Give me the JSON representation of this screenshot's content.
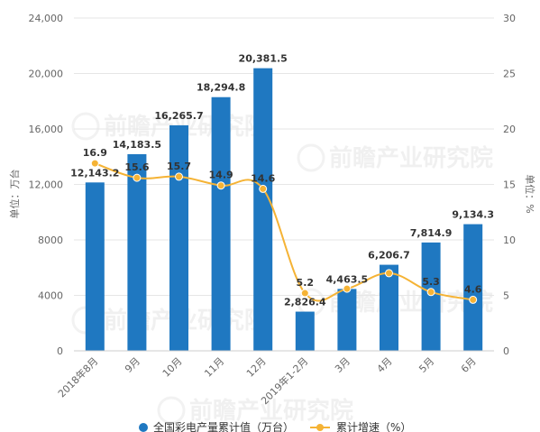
{
  "chart_data": {
    "type": "bar",
    "categories": [
      "2018年8月",
      "9月",
      "10月",
      "11月",
      "12月",
      "2019年1-2月",
      "3月",
      "4月",
      "5月",
      "6月"
    ],
    "series": [
      {
        "name": "全国彩电产量累计值（万台）",
        "type": "bar",
        "axis": "left",
        "values": [
          12143.2,
          14183.5,
          16265.7,
          18294.8,
          20381.5,
          2826.4,
          4463.5,
          6206.7,
          7814.9,
          9134.3
        ],
        "labels": [
          "12,143.2",
          "14,183.5",
          "16,265.7",
          "18,294.8",
          "20,381.5",
          "2,826.4",
          "4,463.5",
          "6,206.7",
          "7,814.9",
          "9,134.3"
        ],
        "color": "#1f78c1"
      },
      {
        "name": "累计增速（%）",
        "type": "line",
        "axis": "right",
        "values": [
          16.9,
          15.6,
          15.7,
          14.9,
          14.6,
          5.2,
          5.6,
          7.0,
          5.3,
          4.6
        ],
        "labels": [
          "16.9",
          "15.6",
          "15.7",
          "14.9",
          "14.6",
          "5.2",
          "",
          "",
          "5.3",
          "4.6"
        ],
        "color": "#f5b335"
      }
    ],
    "ylabel_left": "单位：万台",
    "ylabel_right": "单位：%",
    "ylim_left": [
      0,
      24000
    ],
    "ylim_right": [
      0,
      30
    ],
    "yticks_left": [
      "0",
      "4000",
      "8000",
      "12,000",
      "16,000",
      "20,000",
      "24,000"
    ],
    "yticks_right": [
      "0",
      "5",
      "10",
      "15",
      "20",
      "25",
      "30"
    ],
    "grid": true,
    "legend_position": "bottom",
    "watermark": "前瞻产业研究院"
  }
}
